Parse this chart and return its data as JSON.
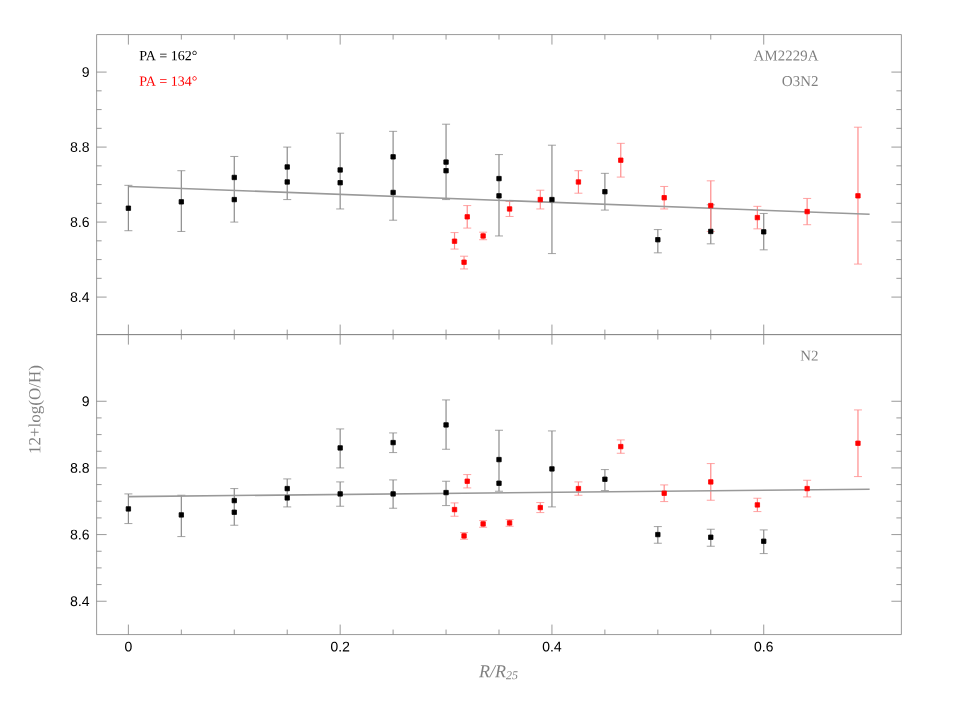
{
  "chart_data": [
    {
      "type": "scatter",
      "xlim": [
        -0.03,
        0.73
      ],
      "ylim": [
        8.3,
        9.1
      ],
      "xticks": [
        0,
        0.2,
        0.4,
        0.6
      ],
      "yticks": [
        8.4,
        8.6,
        8.8,
        9
      ],
      "tick_labels": "y",
      "marker": "square",
      "legend": "top left",
      "ylabel": "12+log(O/H)",
      "annotations": [
        "AM2229A",
        "O3N2"
      ],
      "series": [
        {
          "name": "PA = 162°",
          "color": "#000000",
          "x": [
            0,
            0.05,
            0.1,
            0.1,
            0.15,
            0.15,
            0.2,
            0.2,
            0.25,
            0.25,
            0.3,
            0.3,
            0.35,
            0.35,
            0.4,
            0.45,
            0.5,
            0.55,
            0.6
          ],
          "values": [
            8.637,
            8.654,
            8.719,
            8.66,
            8.747,
            8.707,
            8.739,
            8.705,
            8.774,
            8.679,
            8.76,
            8.737,
            8.716,
            8.67,
            8.66,
            8.681,
            8.553,
            8.575,
            8.574
          ],
          "errors": [
            [
              8.577,
              8.698
            ],
            [
              8.575,
              8.737
            ],
            [
              8.6,
              8.775
            ],
            null,
            [
              8.66,
              8.8
            ],
            null,
            [
              8.635,
              8.837
            ],
            null,
            [
              8.605,
              8.842
            ],
            null,
            [
              8.66,
              8.861
            ],
            null,
            [
              8.563,
              8.78
            ],
            null,
            [
              8.516,
              8.805
            ],
            [
              8.632,
              8.73
            ],
            [
              8.518,
              8.58
            ],
            [
              8.542,
              8.646
            ],
            [
              8.526,
              8.623
            ]
          ]
        },
        {
          "name": "PA = 134°",
          "color": "#ff0000",
          "x": [
            0.308,
            0.32,
            0.317,
            0.335,
            0.36,
            0.389,
            0.425,
            0.465,
            0.506,
            0.55,
            0.594,
            0.641,
            0.689
          ],
          "values": [
            8.549,
            8.614,
            8.493,
            8.563,
            8.635,
            8.66,
            8.707,
            8.765,
            8.665,
            8.644,
            8.612,
            8.628,
            8.67
          ],
          "errors": [
            [
              8.528,
              8.572
            ],
            [
              8.584,
              8.644
            ],
            [
              8.475,
              8.509
            ],
            [
              8.553,
              8.573
            ],
            [
              8.615,
              8.655
            ],
            [
              8.635,
              8.685
            ],
            [
              8.677,
              8.737
            ],
            [
              8.72,
              8.81
            ],
            [
              8.635,
              8.695
            ],
            [
              8.575,
              8.71
            ],
            [
              8.582,
              8.642
            ],
            [
              8.593,
              8.663
            ],
            [
              8.488,
              8.853
            ]
          ]
        },
        {
          "type": "line",
          "marker": "none",
          "color": "#999999",
          "x": [
            0,
            0.7
          ],
          "values": [
            8.695,
            8.621
          ]
        }
      ]
    },
    {
      "type": "scatter",
      "xlim": [
        -0.03,
        0.73
      ],
      "ylim": [
        8.3,
        9.2
      ],
      "xticks": [
        0,
        0.2,
        0.4,
        0.6
      ],
      "yticks": [
        8.4,
        8.6,
        8.8,
        9
      ],
      "marker": "square",
      "xlabel": "R/R$_{25}$",
      "annotations": [
        "N2"
      ],
      "series": [
        {
          "color": "#000000",
          "x": [
            0,
            0.05,
            0.1,
            0.1,
            0.15,
            0.15,
            0.2,
            0.2,
            0.25,
            0.25,
            0.3,
            0.3,
            0.35,
            0.35,
            0.4,
            0.45,
            0.5,
            0.55,
            0.6
          ],
          "values": [
            8.677,
            8.659,
            8.702,
            8.667,
            8.738,
            8.71,
            8.86,
            8.722,
            8.876,
            8.722,
            8.929,
            8.726,
            8.825,
            8.754,
            8.797,
            8.766,
            8.6,
            8.592,
            8.58
          ],
          "errors": [
            [
              8.633,
              8.722
            ],
            [
              8.594,
              8.718
            ],
            [
              8.628,
              8.738
            ],
            null,
            [
              8.683,
              8.767
            ],
            null,
            [
              8.8,
              8.917
            ],
            [
              8.685,
              8.758
            ],
            [
              8.846,
              8.905
            ],
            [
              8.679,
              8.764
            ],
            [
              8.856,
              9.004
            ],
            [
              8.687,
              8.76
            ],
            [
              8.73,
              8.913
            ],
            null,
            [
              8.683,
              8.911
            ],
            [
              8.732,
              8.795
            ],
            [
              8.574,
              8.624
            ],
            [
              8.565,
              8.616
            ],
            [
              8.543,
              8.614
            ]
          ]
        },
        {
          "color": "#ff0000",
          "x": [
            0.308,
            0.32,
            0.317,
            0.335,
            0.36,
            0.389,
            0.425,
            0.465,
            0.506,
            0.55,
            0.594,
            0.641,
            0.689
          ],
          "values": [
            8.675,
            8.76,
            8.596,
            8.632,
            8.635,
            8.681,
            8.738,
            8.864,
            8.724,
            8.758,
            8.689,
            8.738,
            8.874
          ],
          "errors": [
            [
              8.655,
              8.695
            ],
            [
              8.74,
              8.78
            ],
            [
              8.586,
              8.606
            ],
            [
              8.622,
              8.642
            ],
            [
              8.625,
              8.645
            ],
            [
              8.666,
              8.696
            ],
            [
              8.718,
              8.758
            ],
            [
              8.844,
              8.884
            ],
            [
              8.699,
              8.749
            ],
            [
              8.703,
              8.813
            ],
            [
              8.669,
              8.709
            ],
            [
              8.713,
              8.763
            ],
            [
              8.774,
              8.974
            ]
          ]
        },
        {
          "type": "line",
          "marker": "none",
          "color": "#999999",
          "x": [
            0,
            0.7
          ],
          "values": [
            8.714,
            8.736
          ]
        }
      ]
    }
  ]
}
